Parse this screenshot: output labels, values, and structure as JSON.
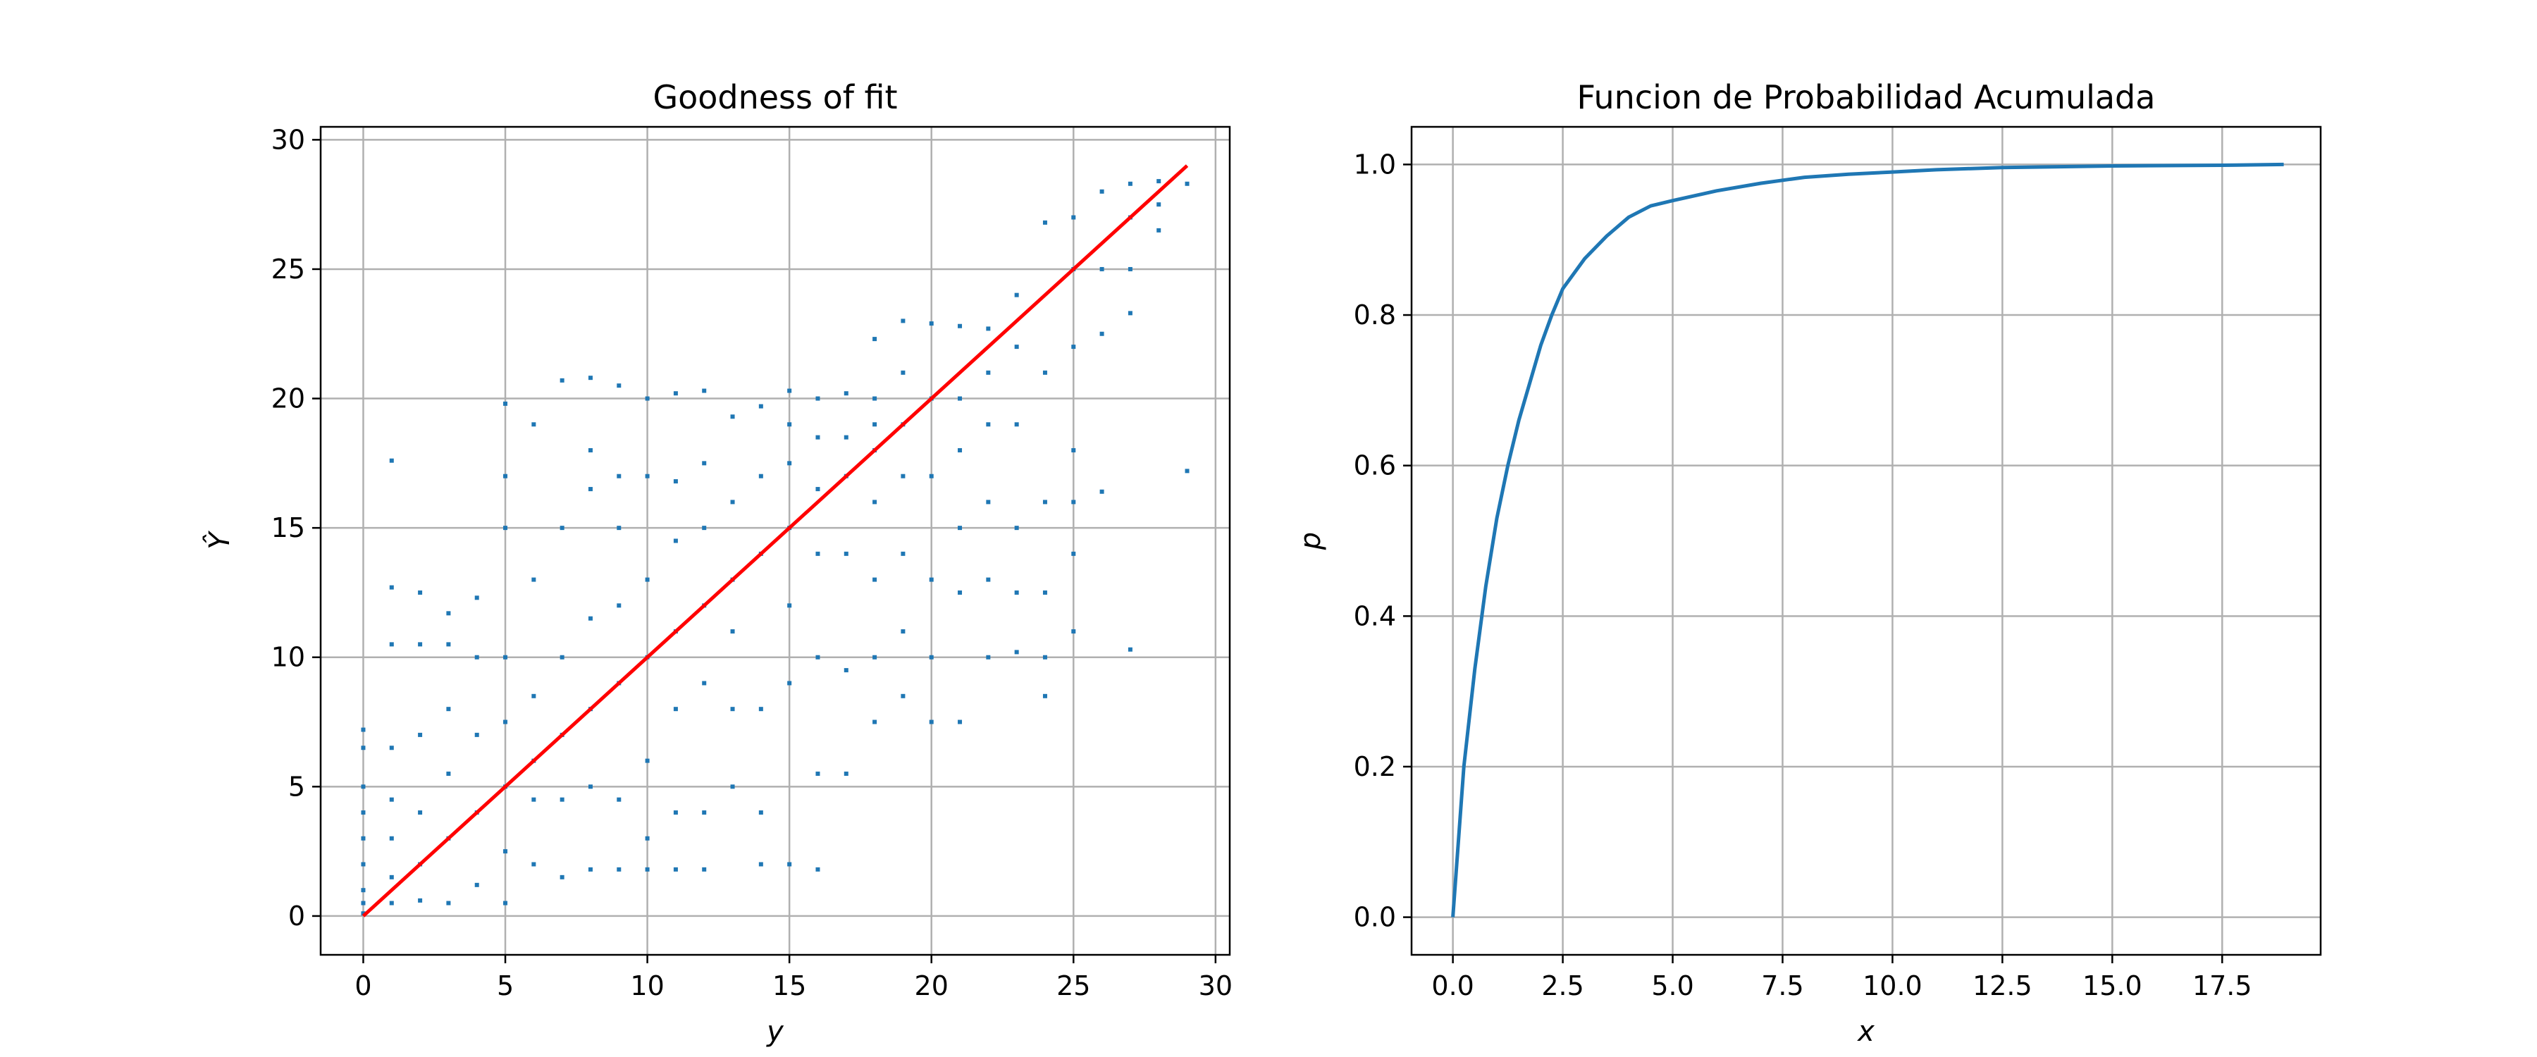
{
  "chart_data": [
    {
      "type": "scatter",
      "title": "Goodness of fit",
      "xlabel": "y",
      "ylabel": "Ŷ",
      "xlim": [
        -1.5,
        30.5
      ],
      "ylim": [
        -1.5,
        30.5
      ],
      "xticks": [
        "0",
        "5",
        "10",
        "15",
        "20",
        "25",
        "30"
      ],
      "yticks": [
        "0",
        "5",
        "10",
        "15",
        "20",
        "25",
        "30"
      ],
      "grid": true,
      "marker_color": "#1f77b4",
      "reference_line": {
        "name": "identity",
        "x": [
          0,
          29
        ],
        "y": [
          0,
          29
        ],
        "color": "#ff0000"
      },
      "series": [
        {
          "x": [
            0,
            0,
            0,
            0,
            0,
            0,
            0,
            0,
            0,
            1,
            1,
            1,
            1,
            1,
            1,
            1,
            1,
            2,
            2,
            2,
            2,
            2,
            2,
            3,
            3,
            3,
            3,
            3,
            3,
            4,
            4,
            4,
            4,
            4,
            5,
            5,
            5,
            5,
            5,
            5,
            5,
            5,
            6,
            6,
            6,
            6,
            6,
            6,
            7,
            7,
            7,
            7,
            7,
            7,
            8,
            8,
            8,
            8,
            8,
            8,
            8,
            9,
            9,
            9,
            9,
            9,
            9,
            9,
            10,
            10,
            10,
            10,
            10,
            10,
            10,
            11,
            11,
            11,
            11,
            11,
            11,
            11,
            12,
            12,
            12,
            12,
            12,
            12,
            12,
            13,
            13,
            13,
            13,
            13,
            13,
            14,
            14,
            14,
            14,
            14,
            14,
            15,
            15,
            15,
            15,
            15,
            15,
            15,
            16,
            16,
            16,
            16,
            16,
            16,
            16,
            17,
            17,
            17,
            17,
            17,
            17,
            18,
            18,
            18,
            18,
            18,
            18,
            18,
            18,
            19,
            19,
            19,
            19,
            19,
            19,
            19,
            20,
            20,
            20,
            20,
            20,
            20,
            21,
            21,
            21,
            21,
            21,
            21,
            22,
            22,
            22,
            22,
            22,
            22,
            23,
            23,
            23,
            23,
            23,
            23,
            24,
            24,
            24,
            24,
            24,
            24,
            25,
            25,
            25,
            25,
            25,
            25,
            25,
            26,
            26,
            26,
            26,
            27,
            27,
            27,
            27,
            27,
            28,
            28,
            28,
            29,
            29
          ],
          "y": [
            0.1,
            0.5,
            1.0,
            2.0,
            3.0,
            4.0,
            5.0,
            6.5,
            7.2,
            0.5,
            1.5,
            3.0,
            4.5,
            6.5,
            10.5,
            12.7,
            17.6,
            0.6,
            2.0,
            4.0,
            7.0,
            10.5,
            12.5,
            0.5,
            3.0,
            5.5,
            8.0,
            10.5,
            11.7,
            1.2,
            4.0,
            7.0,
            10.0,
            12.3,
            0.5,
            2.5,
            5.0,
            7.5,
            10.0,
            15.0,
            17.0,
            19.8,
            2.0,
            4.5,
            6.0,
            8.5,
            13.0,
            19.0,
            1.5,
            4.5,
            7.0,
            10.0,
            15.0,
            20.7,
            1.8,
            5.0,
            8.0,
            11.5,
            16.5,
            20.8,
            18.0,
            1.8,
            4.5,
            9.0,
            12.0,
            15.0,
            17.0,
            20.5,
            1.8,
            6.0,
            10.0,
            13.0,
            17.0,
            20.0,
            3.0,
            1.8,
            4.0,
            8.0,
            11.0,
            14.5,
            16.8,
            20.2,
            1.8,
            4.0,
            9.0,
            12.0,
            15.0,
            17.5,
            20.3,
            5.0,
            8.0,
            11.0,
            13.0,
            16.0,
            19.3,
            2.0,
            4.0,
            8.0,
            14.0,
            17.0,
            19.7,
            2.0,
            9.0,
            12.0,
            15.0,
            17.5,
            19.0,
            20.3,
            1.8,
            5.5,
            10.0,
            14.0,
            16.5,
            18.5,
            20.0,
            5.5,
            9.5,
            14.0,
            17.0,
            18.5,
            20.2,
            7.5,
            10.0,
            13.0,
            16.0,
            18.0,
            20.0,
            22.3,
            19.0,
            8.5,
            11.0,
            14.0,
            17.0,
            19.0,
            21.0,
            23.0,
            7.5,
            10.0,
            13.0,
            17.0,
            20.0,
            22.9,
            7.5,
            12.5,
            15.0,
            18.0,
            20.0,
            22.8,
            10.0,
            13.0,
            16.0,
            19.0,
            21.0,
            22.7,
            10.2,
            12.5,
            15.0,
            19.0,
            22.0,
            24.0,
            8.5,
            10.0,
            12.5,
            16.0,
            21.0,
            26.8,
            11.0,
            14.0,
            16.0,
            18.0,
            22.0,
            25.0,
            27.0,
            16.4,
            22.5,
            25.0,
            28.0,
            10.3,
            23.3,
            25.0,
            27.0,
            28.3,
            26.5,
            27.5,
            28.4,
            28.3,
            17.2
          ]
        }
      ]
    },
    {
      "type": "line",
      "title": "Funcion de Probabilidad Acumulada",
      "xlabel": "x",
      "ylabel": "p",
      "xlim": [
        -0.94,
        19.74
      ],
      "ylim": [
        -0.05,
        1.05
      ],
      "xticks": [
        "0.0",
        "2.5",
        "5.0",
        "7.5",
        "10.0",
        "12.5",
        "15.0",
        "17.5"
      ],
      "yticks": [
        "0.0",
        "0.2",
        "0.4",
        "0.6",
        "0.8",
        "1.0"
      ],
      "grid": true,
      "line_color": "#1f77b4",
      "series": [
        {
          "x": [
            0,
            0.25,
            0.5,
            0.75,
            1.0,
            1.25,
            1.5,
            1.75,
            2.0,
            2.25,
            2.5,
            2.75,
            3.0,
            3.5,
            4.0,
            4.5,
            5.0,
            6.0,
            7.0,
            8.0,
            9.0,
            10.0,
            11.0,
            12.5,
            15.0,
            17.5,
            18.9
          ],
          "y": [
            0,
            0.2,
            0.33,
            0.44,
            0.53,
            0.6,
            0.66,
            0.71,
            0.76,
            0.8,
            0.835,
            0.855,
            0.875,
            0.905,
            0.93,
            0.945,
            0.952,
            0.965,
            0.975,
            0.983,
            0.987,
            0.99,
            0.993,
            0.996,
            0.998,
            0.999,
            1.0
          ]
        }
      ]
    }
  ]
}
